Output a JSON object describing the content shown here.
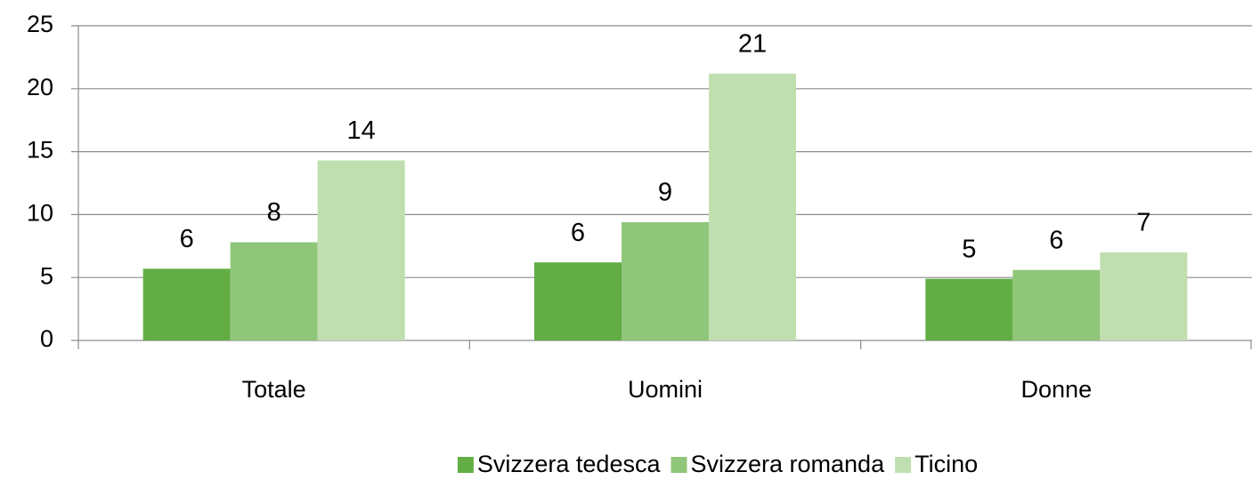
{
  "chart_data": {
    "type": "bar",
    "categories": [
      "Totale",
      "Uomini",
      "Donne"
    ],
    "series": [
      {
        "name": "Svizzera tedesca",
        "color": "#62ae44",
        "values": [
          5.7,
          6.2,
          4.9
        ],
        "value_labels": [
          "6",
          "6",
          "5"
        ]
      },
      {
        "name": "Svizzera romanda",
        "color": "#90c67a",
        "values": [
          7.8,
          9.4,
          5.6
        ],
        "value_labels": [
          "8",
          "9",
          "6"
        ]
      },
      {
        "name": "Ticino",
        "color": "#c0dfb0",
        "values": [
          14.3,
          21.2,
          7.0
        ],
        "value_labels": [
          "14",
          "21",
          "7"
        ]
      }
    ],
    "ylim": [
      0,
      25
    ],
    "yticks": [
      0,
      5,
      10,
      15,
      20,
      25
    ],
    "grid": true,
    "legend": "bottom"
  }
}
